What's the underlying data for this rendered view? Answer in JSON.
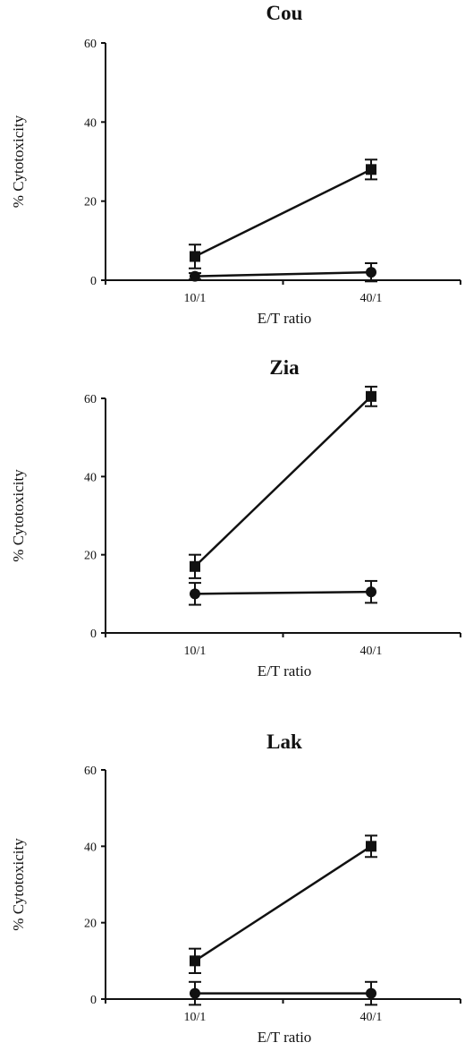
{
  "chart_data": [
    {
      "type": "line",
      "title": "Cou",
      "xlabel": "E/T ratio",
      "ylabel": "% Cytotoxicity",
      "categories": [
        "10/1",
        "40/1"
      ],
      "ylim": [
        0,
        60
      ],
      "yticks": [
        0,
        20,
        40,
        60
      ],
      "series": [
        {
          "marker": "square",
          "values": [
            6,
            28
          ],
          "errors": [
            3,
            2.5
          ]
        },
        {
          "marker": "circle",
          "values": [
            1,
            2
          ],
          "errors": [
            0.8,
            2.3
          ]
        }
      ]
    },
    {
      "type": "line",
      "title": "Zia",
      "xlabel": "E/T ratio",
      "ylabel": "% Cytotoxicity",
      "categories": [
        "10/1",
        "40/1"
      ],
      "ylim": [
        0,
        60
      ],
      "yticks": [
        0,
        20,
        40,
        60
      ],
      "series": [
        {
          "marker": "square",
          "values": [
            17,
            60.5
          ],
          "errors": [
            3,
            2.5
          ]
        },
        {
          "marker": "circle",
          "values": [
            10,
            10.5
          ],
          "errors": [
            2.8,
            2.8
          ]
        }
      ]
    },
    {
      "type": "line",
      "title": "Lak",
      "xlabel": "E/T ratio",
      "ylabel": "% Cytotoxicity",
      "categories": [
        "10/1",
        "40/1"
      ],
      "ylim": [
        0,
        60
      ],
      "yticks": [
        0,
        20,
        40,
        60
      ],
      "series": [
        {
          "marker": "square",
          "values": [
            10,
            40
          ],
          "errors": [
            3.2,
            2.8
          ]
        },
        {
          "marker": "circle",
          "values": [
            1.5,
            1.5
          ],
          "errors": [
            3,
            3
          ]
        }
      ]
    }
  ]
}
